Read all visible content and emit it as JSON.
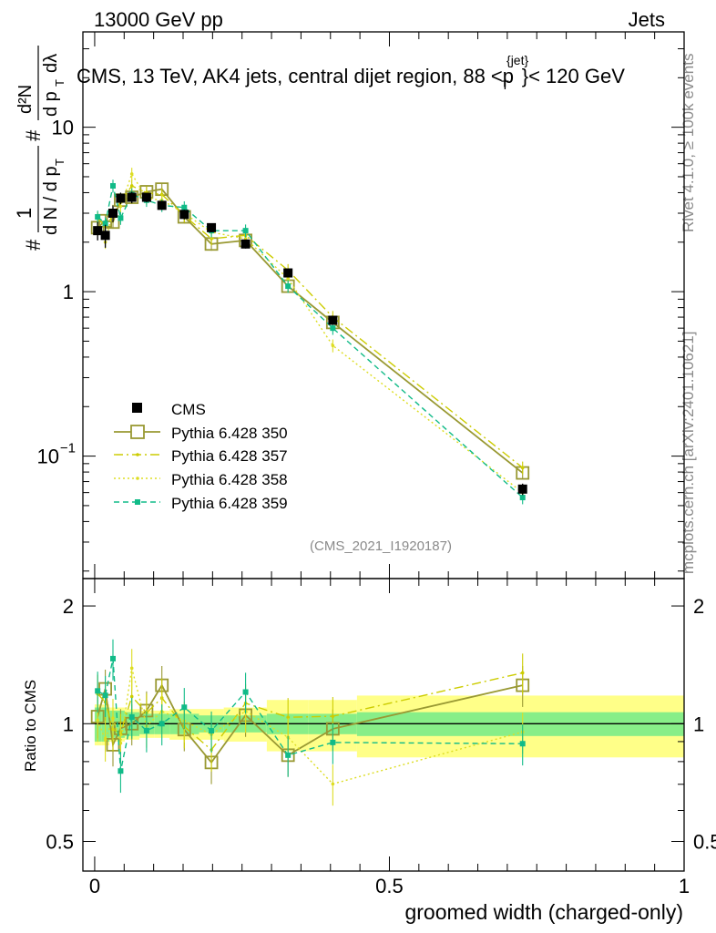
{
  "header": {
    "left": "13000 GeV pp",
    "right": "Jets"
  },
  "side_labels": {
    "rivet": "Rivet 4.1.0, ≥ 100k events",
    "mcplots": "mcplots.cern.ch [arXiv:2401.10621]"
  },
  "watermark": "(CMS_2021_I1920187)",
  "chart_data": {
    "type": "line",
    "title": "CMS, 13 TeV, AK4 jets, central dijet region, 88 <p_T^{jet}< 120 GeV",
    "title_parts": {
      "main": "CMS, 13 TeV, AK4 jets, central dijet region, 88 <p",
      "sup": "{jet}",
      "sub": "T",
      "end": "}< 120 GeV"
    },
    "xlabel": "groomed width (charged-only)",
    "ylabel": "1/(dN/dp_T) · d²N/(dp_T dλ)",
    "xlim": [
      -0.02,
      1.0
    ],
    "ylim": [
      0.018,
      38
    ],
    "yscale": "log",
    "x_ticks": [
      {
        "v": 0,
        "label": "0"
      },
      {
        "v": 0.5,
        "label": "0.5"
      },
      {
        "v": 1,
        "label": "1"
      }
    ],
    "y_ticks": [
      {
        "v": 0.1,
        "label": "10",
        "sup": "−1"
      },
      {
        "v": 1,
        "label": "1",
        "sup": ""
      },
      {
        "v": 10,
        "label": "10",
        "sup": ""
      }
    ],
    "x": [
      0.005,
      0.018,
      0.031,
      0.044,
      0.063,
      0.088,
      0.114,
      0.152,
      0.198,
      0.256,
      0.328,
      0.404,
      0.726
    ],
    "data_series": {
      "name": "CMS",
      "values": [
        2.35,
        2.2,
        3.0,
        3.7,
        3.75,
        3.75,
        3.35,
        2.95,
        2.45,
        1.95,
        1.3,
        0.67,
        0.063
      ],
      "errors": [
        0.3,
        0.35,
        0.35,
        0.3,
        0.3,
        0.25,
        0.2,
        0.2,
        0.15,
        0.12,
        0.08,
        0.04,
        0.005
      ]
    },
    "series": [
      {
        "name": "Pythia 6.428 350",
        "color": "#999933",
        "style": "open-square",
        "values": [
          2.45,
          2.7,
          2.65,
          3.6,
          3.75,
          4.05,
          4.2,
          2.85,
          1.95,
          2.05,
          1.08,
          0.65,
          0.079
        ]
      },
      {
        "name": "Pythia 6.428 357",
        "color": "#cccc00",
        "style": "dashdot",
        "values": [
          2.8,
          2.5,
          2.9,
          3.5,
          4.4,
          4.0,
          3.9,
          2.9,
          2.1,
          2.2,
          1.35,
          0.7,
          0.085
        ]
      },
      {
        "name": "Pythia 6.428 358",
        "color": "#dddd22",
        "style": "dotted",
        "values": [
          2.4,
          2.0,
          3.1,
          3.3,
          5.2,
          3.7,
          3.6,
          3.0,
          2.3,
          2.1,
          1.2,
          0.47,
          0.06
        ]
      },
      {
        "name": "Pythia 6.428 359",
        "color": "#11bb88",
        "style": "dashed-square",
        "values": [
          2.85,
          2.6,
          4.4,
          2.8,
          3.9,
          3.6,
          3.35,
          3.25,
          2.35,
          2.35,
          1.08,
          0.6,
          0.056
        ]
      }
    ],
    "ratio": {
      "ylabel": "Ratio to CMS",
      "ylim": [
        0.42,
        2.35
      ],
      "ticks": [
        {
          "v": 0.5,
          "label": "0.5"
        },
        {
          "v": 1,
          "label": "1"
        },
        {
          "v": 2,
          "label": "2"
        }
      ],
      "band_edges": [
        0,
        0.012,
        0.025,
        0.038,
        0.051,
        0.076,
        0.101,
        0.127,
        0.177,
        0.219,
        0.292,
        0.363,
        0.445,
        1.0
      ],
      "band_inner": [
        0.1,
        0.1,
        0.08,
        0.08,
        0.07,
        0.06,
        0.06,
        0.06,
        0.05,
        0.05,
        0.06,
        0.06,
        0.07
      ],
      "band_outer": [
        0.12,
        0.12,
        0.1,
        0.1,
        0.09,
        0.08,
        0.08,
        0.09,
        0.09,
        0.1,
        0.15,
        0.15,
        0.18
      ]
    }
  }
}
